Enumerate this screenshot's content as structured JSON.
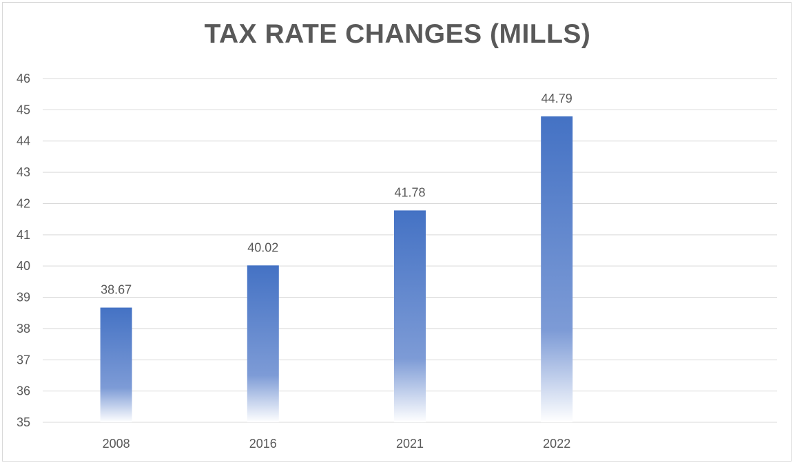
{
  "chart_data": {
    "type": "bar",
    "title": "TAX RATE CHANGES (MILLS)",
    "xlabel": "",
    "ylabel": "",
    "categories": [
      "2008",
      "2016",
      "2021",
      "2022"
    ],
    "values": [
      38.67,
      40.02,
      41.78,
      44.79
    ],
    "data_labels": [
      "38.67",
      "40.02",
      "41.78",
      "44.79"
    ],
    "ylim": [
      35,
      46
    ],
    "yticks": [
      "35",
      "36",
      "37",
      "38",
      "39",
      "40",
      "41",
      "42",
      "43",
      "44",
      "45",
      "46"
    ],
    "grid": true,
    "legend": "none",
    "bar_color": "#4472c4"
  }
}
